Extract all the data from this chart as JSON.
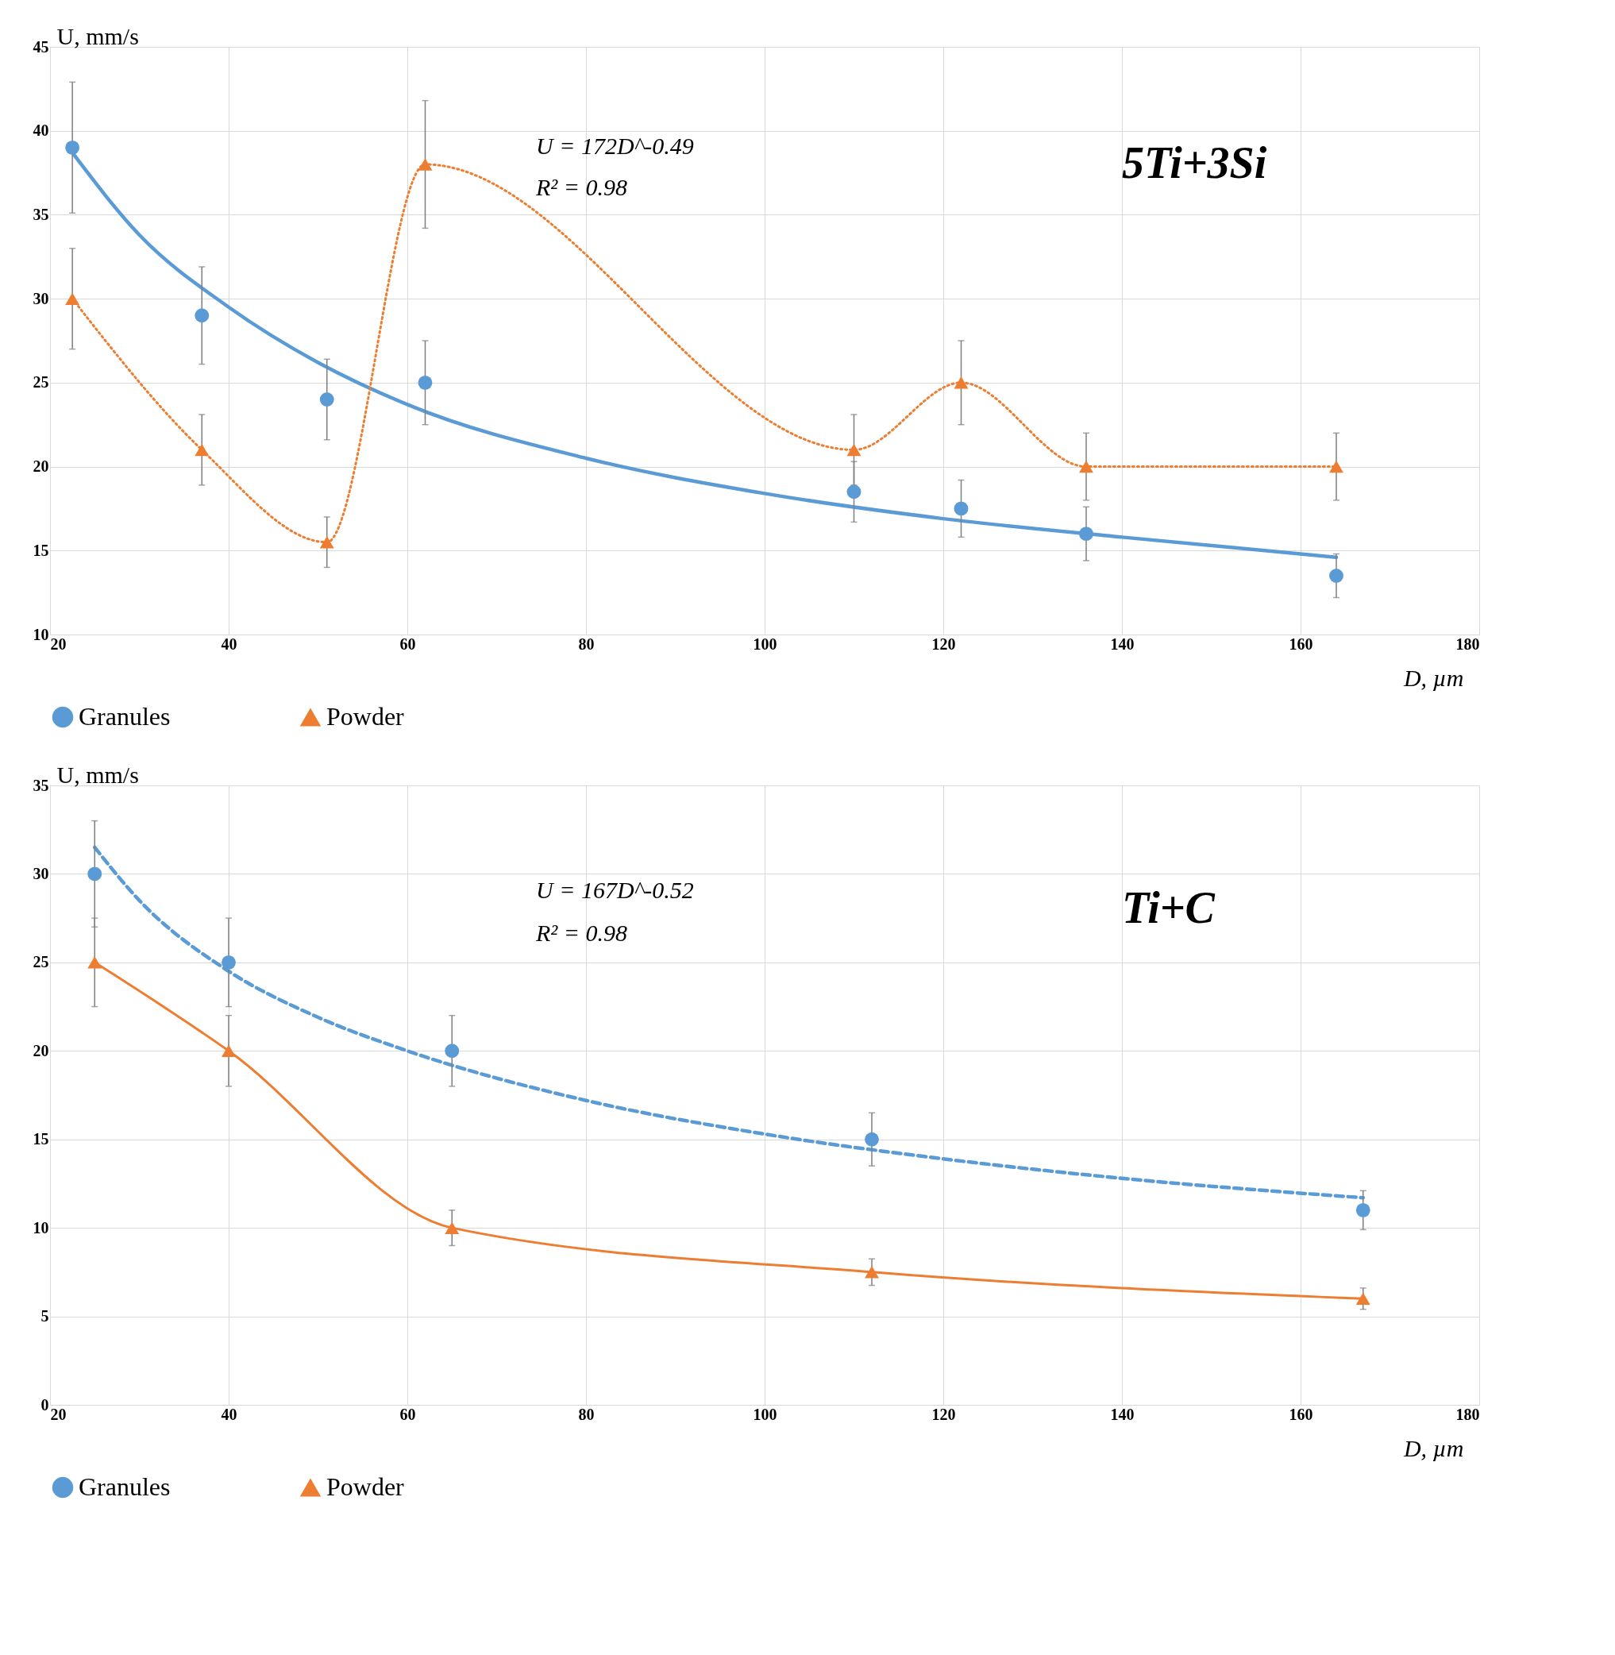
{
  "chart_data": [
    {
      "type": "scatter",
      "xlabel": "D, µm",
      "ylabel": "U, mm/s",
      "xlim": [
        20,
        180
      ],
      "ylim": [
        10,
        45
      ],
      "xticks": [
        20,
        40,
        60,
        80,
        100,
        120,
        140,
        160,
        180
      ],
      "yticks": [
        10,
        15,
        20,
        25,
        30,
        35,
        40,
        45
      ],
      "grid": true,
      "legend": "bottom",
      "annotations": [
        "U = 172D^-0.49",
        "R² = 0.98",
        "5Ti+3Si"
      ],
      "series": [
        {
          "type": "line",
          "color": "#5b9bd5",
          "marker": "none",
          "line_style": "solid",
          "x": [
            22.5,
            30,
            40,
            50,
            60,
            80,
            100,
            120,
            140,
            164
          ],
          "values": [
            38.7,
            33.8,
            29.5,
            26.2,
            23.7,
            20.5,
            18.4,
            16.9,
            15.8,
            14.6
          ]
        },
        {
          "name": "Granules",
          "type": "scatter",
          "color": "#5b9bd5",
          "marker": "circle",
          "x": [
            22.5,
            37,
            51,
            62,
            110,
            122,
            136,
            164
          ],
          "values": [
            39,
            29,
            24,
            25,
            18.5,
            17.5,
            16,
            13.5
          ],
          "errors": [
            3.9,
            2.9,
            2.4,
            2.5,
            1.8,
            1.7,
            1.6,
            1.3
          ]
        },
        {
          "name": "Powder",
          "type": "line",
          "color": "#ed7d31",
          "marker": "triangle",
          "line_style": "dotted",
          "x": [
            22.5,
            37,
            51,
            62,
            110,
            122,
            136,
            164
          ],
          "values": [
            30,
            21,
            15.5,
            38,
            21,
            25,
            20,
            20
          ],
          "errors": [
            3,
            2.1,
            1.5,
            3.8,
            2.1,
            2.5,
            2,
            2
          ]
        }
      ]
    },
    {
      "type": "scatter",
      "xlabel": "D, µm",
      "ylabel": "U, mm/s",
      "xlim": [
        20,
        180
      ],
      "ylim": [
        0,
        35
      ],
      "xticks": [
        20,
        40,
        60,
        80,
        100,
        120,
        140,
        160,
        180
      ],
      "yticks": [
        0,
        5,
        10,
        15,
        20,
        25,
        30,
        35
      ],
      "grid": true,
      "legend": "bottom",
      "annotations": [
        "U = 167D^-0.52",
        "R² = 0.98",
        "Ti+C"
      ],
      "series": [
        {
          "type": "line",
          "color": "#5b9bd5",
          "marker": "none",
          "line_style": "dashed",
          "x": [
            25,
            30,
            40,
            50,
            60,
            80,
            100,
            120,
            140,
            167
          ],
          "values": [
            31.5,
            28.5,
            24.5,
            21.9,
            20,
            17.2,
            15.3,
            13.9,
            12.8,
            11.7
          ]
        },
        {
          "name": "Granules",
          "type": "scatter",
          "color": "#5b9bd5",
          "marker": "circle",
          "x": [
            25,
            40,
            65,
            112,
            167
          ],
          "values": [
            30,
            25,
            20,
            15,
            11
          ],
          "errors": [
            3,
            2.5,
            2,
            1.5,
            1.1
          ]
        },
        {
          "name": "Powder",
          "type": "line",
          "color": "#ed7d31",
          "marker": "triangle",
          "line_style": "solid",
          "x": [
            25,
            40,
            65,
            112,
            167
          ],
          "values": [
            25,
            20,
            10,
            7.5,
            6
          ],
          "errors": [
            2.5,
            2,
            1,
            0.75,
            0.6
          ]
        }
      ]
    }
  ]
}
